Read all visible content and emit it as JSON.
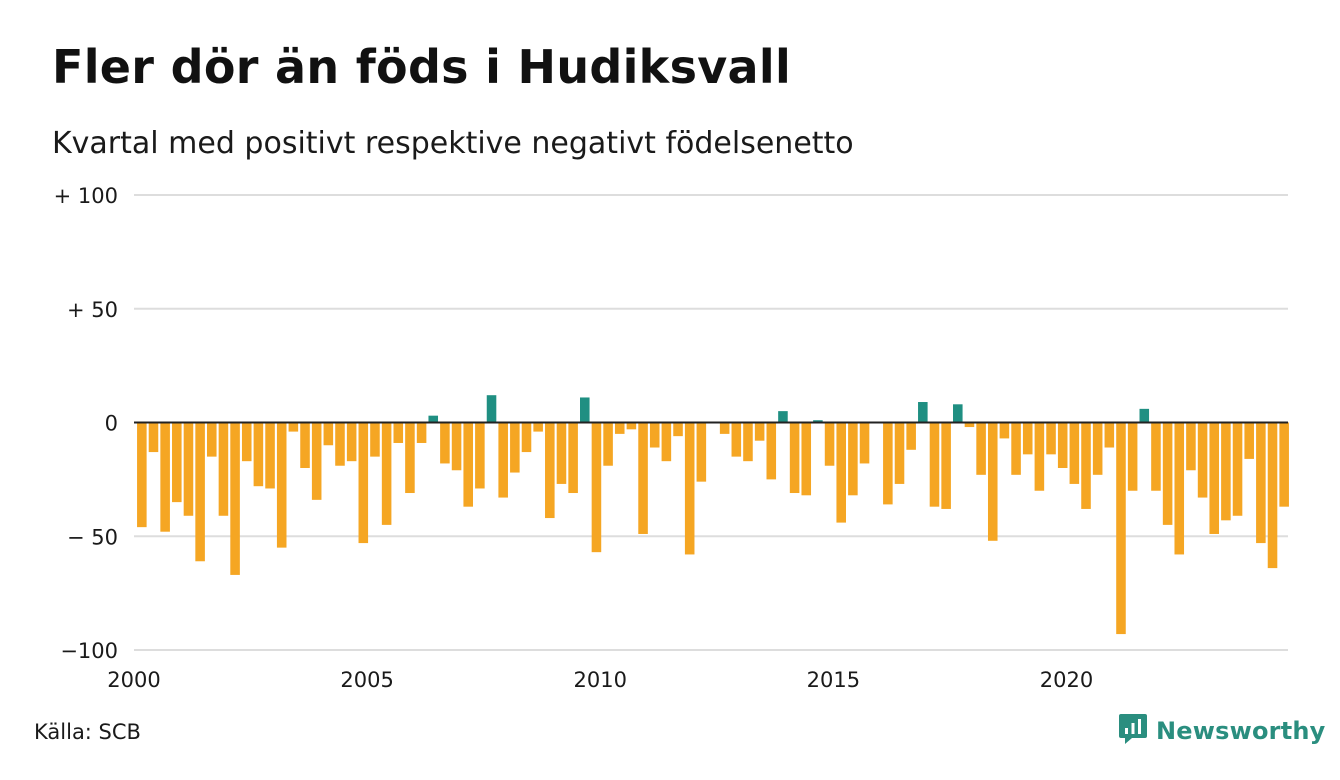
{
  "title": "Fler dör än föds i Hudiksvall",
  "subtitle": "Kvartal med positivt respektive negativt födelsenetto",
  "source": "Källa: SCB",
  "brand": {
    "name": "Newsworthy",
    "icon": "newsworthy-logo-icon",
    "color": "#2a8e7f"
  },
  "colors": {
    "positive": "#1f8f82",
    "negative": "#f5a623",
    "grid": "#dddddd",
    "zero_line": "#222222"
  },
  "chart_data": {
    "type": "bar",
    "title": "Fler dör än föds i Hudiksvall",
    "subtitle": "Kvartal med positivt respektive negativt födelsenetto",
    "xlabel": "",
    "ylabel": "",
    "ylim": [
      -100,
      100
    ],
    "yticks": [
      {
        "value": 100,
        "label": "+ 100"
      },
      {
        "value": 50,
        "label": "+  50"
      },
      {
        "value": 0,
        "label": "0"
      },
      {
        "value": -50,
        "label": "− 50"
      },
      {
        "value": -100,
        "label": "−100"
      }
    ],
    "xlim": [
      2000,
      2024.75
    ],
    "xticks": [
      2000,
      2005,
      2010,
      2015,
      2020
    ],
    "grid": true,
    "legend": "none",
    "frequency": "quarterly",
    "start": "2000 Q1",
    "values": [
      -46,
      -13,
      -48,
      -35,
      -41,
      -61,
      -15,
      -41,
      -67,
      -17,
      -28,
      -29,
      -55,
      -4,
      -20,
      -34,
      -10,
      -19,
      -17,
      -53,
      -15,
      -45,
      -9,
      -31,
      -9,
      3,
      -18,
      -21,
      -37,
      -29,
      12,
      -33,
      -22,
      -13,
      -4,
      -42,
      -27,
      -31,
      11,
      -57,
      -19,
      -5,
      -3,
      -49,
      -11,
      -17,
      -6,
      -58,
      -26,
      0,
      -5,
      -15,
      -17,
      -8,
      -25,
      5,
      -31,
      -32,
      1,
      -19,
      -44,
      -32,
      -18,
      0,
      -36,
      -27,
      -12,
      9,
      -37,
      -38,
      8,
      -2,
      -23,
      -52,
      -7,
      -23,
      -14,
      -30,
      -14,
      -20,
      -27,
      -38,
      -23,
      -11,
      -93,
      -30,
      6,
      -30,
      -45,
      -58,
      -21,
      -33,
      -49,
      -43,
      -41,
      -16,
      -53,
      -64,
      -37
    ]
  }
}
